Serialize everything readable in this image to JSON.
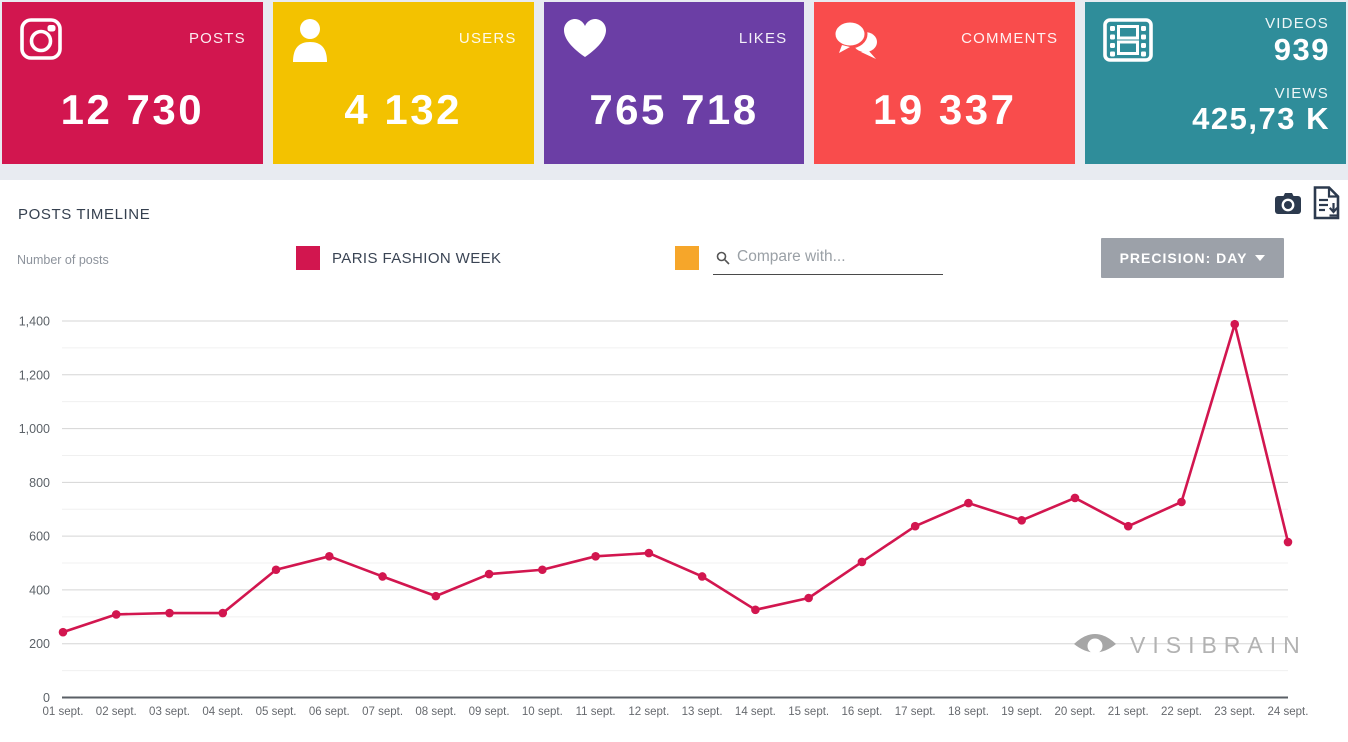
{
  "cards": [
    {
      "label": "POSTS",
      "value": "12 730",
      "color": "#D2164F",
      "icon": "instagram-icon"
    },
    {
      "label": "USERS",
      "value": "4 132",
      "color": "#F3C200",
      "icon": "user-icon"
    },
    {
      "label": "LIKES",
      "value": "765 718",
      "color": "#6B3EA5",
      "icon": "heart-icon"
    },
    {
      "label": "COMMENTS",
      "value": "19 337",
      "color": "#F94C4C",
      "icon": "comments-icon"
    },
    {
      "label": "VIDEOS",
      "value": "939",
      "label2": "VIEWS",
      "value2": "425,73 K",
      "color": "#2F8D9A",
      "icon": "film-icon"
    }
  ],
  "timeline": {
    "title": "POSTS TIMELINE",
    "y_axis_title": "Number of posts",
    "legend": {
      "label": "PARIS FASHION WEEK",
      "color": "#D2164F"
    },
    "compare": {
      "placeholder": "Compare with...",
      "swatch_color": "#F6A62A",
      "icon": "search-icon"
    },
    "precision_button": "PRECISION: DAY",
    "watermark": "VISIBRAIN",
    "toolbar_icons": [
      "camera-icon",
      "export-icon"
    ]
  },
  "chart_data": {
    "type": "line",
    "x": [
      "01 sept.",
      "02 sept.",
      "03 sept.",
      "04 sept.",
      "05 sept.",
      "06 sept.",
      "07 sept.",
      "08 sept.",
      "09 sept.",
      "10 sept.",
      "11 sept.",
      "12 sept.",
      "13 sept.",
      "14 sept.",
      "15 sept.",
      "16 sept.",
      "17 sept.",
      "18 sept.",
      "19 sept.",
      "20 sept.",
      "21 sept.",
      "22 sept.",
      "23 sept.",
      "24 sept."
    ],
    "series": [
      {
        "name": "PARIS FASHION WEEK",
        "color": "#D2164F",
        "values": [
          243,
          309,
          314,
          314,
          475,
          525,
          450,
          377,
          459,
          475,
          525,
          537,
          450,
          326,
          370,
          504,
          637,
          723,
          659,
          742,
          637,
          727,
          1388,
          578
        ]
      }
    ],
    "title": "POSTS TIMELINE",
    "xlabel": "",
    "ylabel": "Number of posts",
    "ylim": [
      0,
      1400
    ],
    "ytick_step": 200,
    "minor_grid_step": 100,
    "grid": "horizontal",
    "legend_position": "top"
  }
}
